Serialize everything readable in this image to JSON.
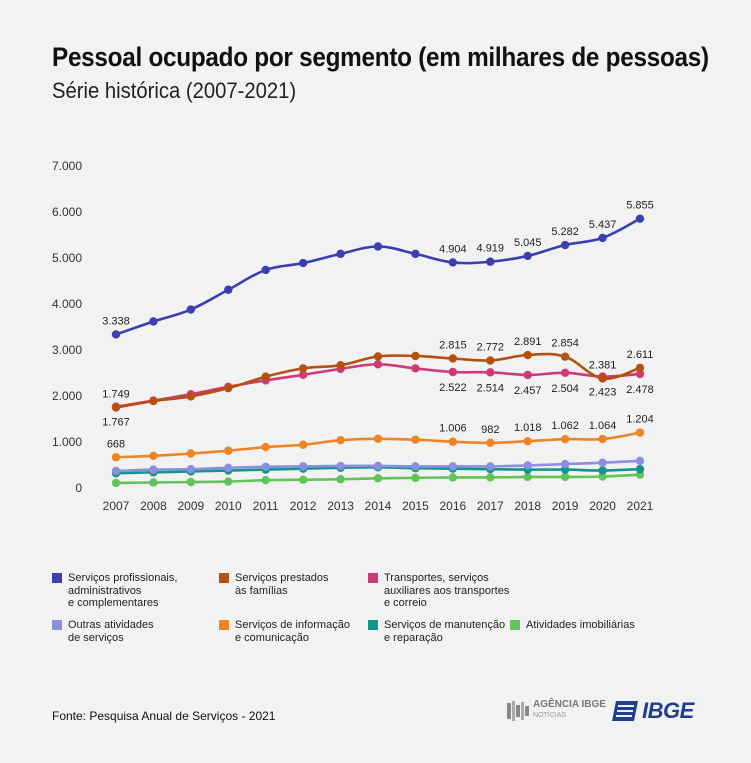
{
  "title": "Pessoal ocupado por segmento (em milhares de pessoas)",
  "subtitle": "Série histórica (2007-2021)",
  "source": "Fonte: Pesquisa Anual de Serviços - 2021",
  "logos": {
    "agencia": "AGÊNCIA IBGE",
    "agencia_sub": "NOTÍCIAS",
    "ibge": "IBGE"
  },
  "chart_data": {
    "type": "line",
    "x": [
      "2007",
      "2008",
      "2009",
      "2010",
      "2011",
      "2012",
      "2013",
      "2014",
      "2015",
      "2016",
      "2017",
      "2018",
      "2019",
      "2020",
      "2021"
    ],
    "ylim": [
      0,
      7000
    ],
    "yticks": [
      0,
      1000,
      2000,
      3000,
      4000,
      5000,
      6000,
      7000
    ],
    "ytick_labels": [
      "0",
      "1.000",
      "2.000",
      "3.000",
      "4.000",
      "5.000",
      "6.000",
      "7.000"
    ],
    "grid": false,
    "legend_position": "bottom",
    "series": [
      {
        "name": "Serviços profissionais, administrativos e complementares",
        "legend_label": "Serviços profissionais,\nadministrativos\ne complementares",
        "color": "#3b3fae",
        "values": [
          3338,
          3620,
          3880,
          4310,
          4740,
          4890,
          5090,
          5250,
          5090,
          4904,
          4919,
          5045,
          5282,
          5437,
          5855
        ]
      },
      {
        "name": "Serviços prestados às famílias",
        "legend_label": "Serviços prestados\nàs famílias",
        "color": "#b5500e",
        "values": [
          1749,
          1890,
          1990,
          2170,
          2420,
          2600,
          2670,
          2860,
          2870,
          2815,
          2772,
          2891,
          2854,
          2381,
          2611
        ]
      },
      {
        "name": "Transportes, serviços auxiliares aos transportes e correio",
        "legend_label": "Transportes, serviços\nauxiliares aos transportes\ne correio",
        "color": "#cc3a78",
        "values": [
          1767,
          1900,
          2040,
          2200,
          2340,
          2460,
          2590,
          2690,
          2600,
          2522,
          2514,
          2457,
          2504,
          2423,
          2478
        ]
      },
      {
        "name": "Outras atividades de serviços",
        "legend_label": "Outras atividades\nde serviços",
        "color": "#8b8fe0",
        "values": [
          370,
          400,
          410,
          440,
          460,
          470,
          480,
          480,
          470,
          470,
          470,
          490,
          520,
          550,
          590
        ]
      },
      {
        "name": "Serviços de informação e comunicação",
        "legend_label": "Serviços de informação\ne comunicação",
        "color": "#ee8426",
        "values": [
          668,
          700,
          750,
          810,
          890,
          940,
          1040,
          1070,
          1050,
          1006,
          982,
          1018,
          1062,
          1064,
          1204
        ]
      },
      {
        "name": "Serviços de manutenção e reparação",
        "legend_label": "Serviços de manutenção\ne reparação",
        "color": "#13958c",
        "values": [
          320,
          340,
          360,
          380,
          400,
          420,
          440,
          450,
          430,
          420,
          410,
          400,
          400,
          380,
          410
        ]
      },
      {
        "name": "Atividades imobiliárias",
        "legend_label": "Atividades imobiliárias",
        "color": "#63c35a",
        "values": [
          110,
          120,
          130,
          140,
          170,
          180,
          190,
          210,
          220,
          230,
          230,
          240,
          240,
          250,
          290
        ]
      }
    ],
    "data_labels": [
      {
        "series": 0,
        "index": 0,
        "text": "3.338",
        "pos": "above"
      },
      {
        "series": 0,
        "index": 9,
        "text": "4.904",
        "pos": "above"
      },
      {
        "series": 0,
        "index": 10,
        "text": "4.919",
        "pos": "above"
      },
      {
        "series": 0,
        "index": 11,
        "text": "5.045",
        "pos": "above"
      },
      {
        "series": 0,
        "index": 12,
        "text": "5.282",
        "pos": "above"
      },
      {
        "series": 0,
        "index": 13,
        "text": "5.437",
        "pos": "above"
      },
      {
        "series": 0,
        "index": 14,
        "text": "5.855",
        "pos": "above"
      },
      {
        "series": 1,
        "index": 0,
        "text": "1.749",
        "pos": "above"
      },
      {
        "series": 1,
        "index": 9,
        "text": "2.815",
        "pos": "above"
      },
      {
        "series": 1,
        "index": 10,
        "text": "2.772",
        "pos": "above"
      },
      {
        "series": 1,
        "index": 11,
        "text": "2.891",
        "pos": "above"
      },
      {
        "series": 1,
        "index": 12,
        "text": "2.854",
        "pos": "above"
      },
      {
        "series": 1,
        "index": 13,
        "text": "2.381",
        "pos": "above"
      },
      {
        "series": 1,
        "index": 14,
        "text": "2.611",
        "pos": "above"
      },
      {
        "series": 2,
        "index": 0,
        "text": "1.767",
        "pos": "below"
      },
      {
        "series": 2,
        "index": 9,
        "text": "2.522",
        "pos": "below"
      },
      {
        "series": 2,
        "index": 10,
        "text": "2.514",
        "pos": "below"
      },
      {
        "series": 2,
        "index": 11,
        "text": "2.457",
        "pos": "below"
      },
      {
        "series": 2,
        "index": 12,
        "text": "2.504",
        "pos": "below"
      },
      {
        "series": 2,
        "index": 13,
        "text": "2.423",
        "pos": "below"
      },
      {
        "series": 2,
        "index": 14,
        "text": "2.478",
        "pos": "below"
      },
      {
        "series": 4,
        "index": 0,
        "text": "668",
        "pos": "above"
      },
      {
        "series": 4,
        "index": 9,
        "text": "1.006",
        "pos": "above"
      },
      {
        "series": 4,
        "index": 10,
        "text": "982",
        "pos": "above"
      },
      {
        "series": 4,
        "index": 11,
        "text": "1.018",
        "pos": "above"
      },
      {
        "series": 4,
        "index": 12,
        "text": "1.062",
        "pos": "above"
      },
      {
        "series": 4,
        "index": 13,
        "text": "1.064",
        "pos": "above"
      },
      {
        "series": 4,
        "index": 14,
        "text": "1.204",
        "pos": "above"
      }
    ]
  }
}
